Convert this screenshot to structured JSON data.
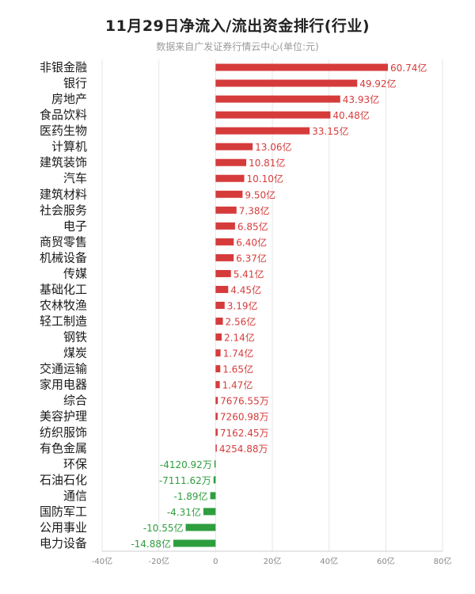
{
  "chart_data": {
    "type": "bar",
    "orientation": "horizontal",
    "title": "11月29日净流入/流出资金排行(行业)",
    "subtitle": "数据来自广发证券行情云中心(单位:元)",
    "xlim": [
      -40,
      80
    ],
    "x_ticks": [
      "-40亿",
      "-20亿",
      "0",
      "20亿",
      "40亿",
      "60亿",
      "80亿"
    ],
    "x_tick_values": [
      -40,
      -20,
      0,
      20,
      40,
      60,
      80
    ],
    "grid": true,
    "colors": {
      "positive": "#d63b3b",
      "negative": "#2e9e3e"
    },
    "categories": [
      "非银金融",
      "银行",
      "房地产",
      "食品饮料",
      "医药生物",
      "计算机",
      "建筑装饰",
      "汽车",
      "建筑材料",
      "社会服务",
      "电子",
      "商贸零售",
      "机械设备",
      "传媒",
      "基础化工",
      "农林牧渔",
      "轻工制造",
      "钢铁",
      "煤炭",
      "交通运输",
      "家用电器",
      "综合",
      "美容护理",
      "纺织服饰",
      "有色金属",
      "环保",
      "石油石化",
      "通信",
      "国防军工",
      "公用事业",
      "电力设备"
    ],
    "values": [
      60.74,
      49.92,
      43.93,
      40.48,
      33.15,
      13.06,
      10.81,
      10.1,
      9.5,
      7.38,
      6.85,
      6.4,
      6.37,
      5.41,
      4.45,
      3.19,
      2.56,
      2.14,
      1.74,
      1.65,
      1.47,
      0.767655,
      0.726098,
      0.716245,
      0.425488,
      -0.412092,
      -0.711162,
      -1.89,
      -4.31,
      -10.55,
      -14.88
    ],
    "labels": [
      "60.74亿",
      "49.92亿",
      "43.93亿",
      "40.48亿",
      "33.15亿",
      "13.06亿",
      "10.81亿",
      "10.10亿",
      "9.50亿",
      "7.38亿",
      "6.85亿",
      "6.40亿",
      "6.37亿",
      "5.41亿",
      "4.45亿",
      "3.19亿",
      "2.56亿",
      "2.14亿",
      "1.74亿",
      "1.65亿",
      "1.47亿",
      "7676.55万",
      "7260.98万",
      "7162.45万",
      "4254.88万",
      "-4120.92万",
      "-7111.62万",
      "-1.89亿",
      "-4.31亿",
      "-10.55亿",
      "-14.88亿"
    ]
  }
}
